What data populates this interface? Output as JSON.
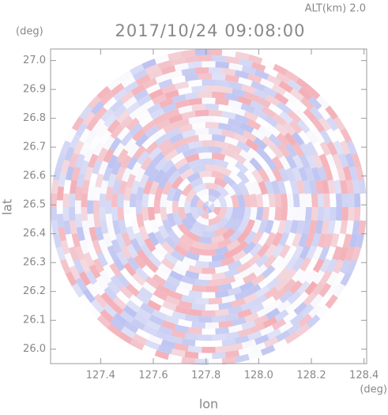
{
  "chart_data": {
    "type": "ppi",
    "title": "2017/10/24 09:08:00",
    "subtitle": "ALT(km) 2.0",
    "x_label": "lon",
    "x_unit": "(deg)",
    "y_label": "lat",
    "y_unit": "(deg)",
    "xlim": [
      127.21,
      128.41
    ],
    "ylim": [
      25.95,
      27.04
    ],
    "xticks": [
      127.4,
      127.6,
      127.8,
      {
        "value": 128,
        "label": "128.0"
      },
      128.2,
      128.4
    ],
    "yticks": [
      {
        "value": 26,
        "label": "26.0"
      },
      26.1,
      26.2,
      26.3,
      26.4,
      26.5,
      26.6,
      26.7,
      26.8,
      26.9,
      {
        "value": 27,
        "label": "27.0"
      }
    ]
  }
}
